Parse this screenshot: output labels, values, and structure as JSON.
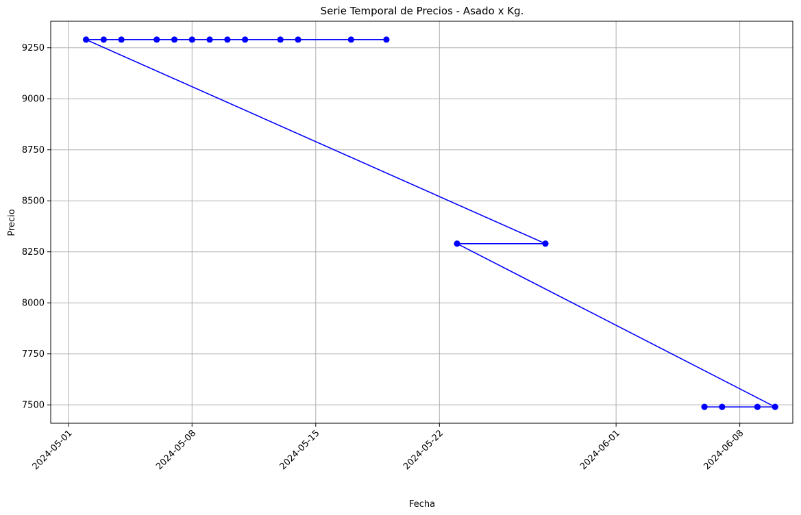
{
  "chart_data": {
    "type": "line",
    "title": "Serie Temporal de Precios - Asado x Kg.",
    "xlabel": "Fecha",
    "ylabel": "Precio",
    "grid": true,
    "xlim": [
      "2024-04-30",
      "2024-06-11"
    ],
    "ylim": [
      7410,
      9380
    ],
    "x_ticks": [
      "2024-05-01",
      "2024-05-08",
      "2024-05-15",
      "2024-05-22",
      "2024-06-01",
      "2024-06-08"
    ],
    "y_ticks": [
      7500,
      7750,
      8000,
      8250,
      8500,
      8750,
      9000,
      9250
    ],
    "series": [
      {
        "color": "#0000ff",
        "marker": "circle",
        "points": [
          {
            "x": "2024-05-19",
            "y": 9290
          },
          {
            "x": "2024-05-17",
            "y": 9290
          },
          {
            "x": "2024-05-14",
            "y": 9290
          },
          {
            "x": "2024-05-13",
            "y": 9290
          },
          {
            "x": "2024-05-11",
            "y": 9290
          },
          {
            "x": "2024-05-10",
            "y": 9290
          },
          {
            "x": "2024-05-09",
            "y": 9290
          },
          {
            "x": "2024-05-08",
            "y": 9290
          },
          {
            "x": "2024-05-07",
            "y": 9290
          },
          {
            "x": "2024-05-06",
            "y": 9290
          },
          {
            "x": "2024-05-04",
            "y": 9290
          },
          {
            "x": "2024-05-03",
            "y": 9290
          },
          {
            "x": "2024-05-02",
            "y": 9290
          },
          {
            "x": "2024-05-28",
            "y": 8290
          },
          {
            "x": "2024-05-23",
            "y": 8290
          },
          {
            "x": "2024-06-10",
            "y": 7490
          },
          {
            "x": "2024-06-09",
            "y": 7490
          },
          {
            "x": "2024-06-07",
            "y": 7490
          },
          {
            "x": "2024-06-06",
            "y": 7490
          }
        ]
      }
    ]
  }
}
